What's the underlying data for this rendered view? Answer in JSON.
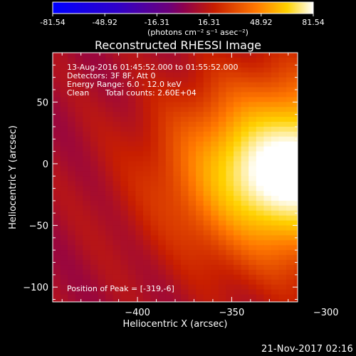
{
  "chart_data": {
    "type": "heatmap",
    "title": "Reconstructed RHESSI Image",
    "xlabel": "Heliocentric X (arcsec)",
    "ylabel": "Heliocentric Y (arcsec)",
    "xlim": [
      -445,
      -315
    ],
    "ylim": [
      -112,
      90
    ],
    "x_ticks": [
      -400,
      -350,
      -300
    ],
    "y_ticks": [
      50,
      0,
      -50,
      -100
    ],
    "colorbar": {
      "unit": "(photons cm⁻² s⁻¹ asec⁻²)",
      "range": [
        -81.54,
        81.54
      ],
      "ticks": [
        "-81.54",
        "-48.92",
        "-16.31",
        "16.31",
        "48.92",
        "81.54"
      ]
    },
    "annotations": {
      "time_range": "13-Aug-2016 01:45:52.000 to 01:55:52.000",
      "detectors": "Detectors: 3F 8F, Att 0",
      "energy": "Energy Range: 6.0 - 12.0 keV",
      "clean_label": "Clean",
      "counts": "Total counts: 2.60E+04",
      "peak": "Position of Peak = [-319,-6]"
    },
    "peak": {
      "x": -319,
      "y": -6,
      "value": 81.54
    },
    "grid": false
  },
  "footer": {
    "timestamp": "21-Nov-2017 02:16"
  }
}
